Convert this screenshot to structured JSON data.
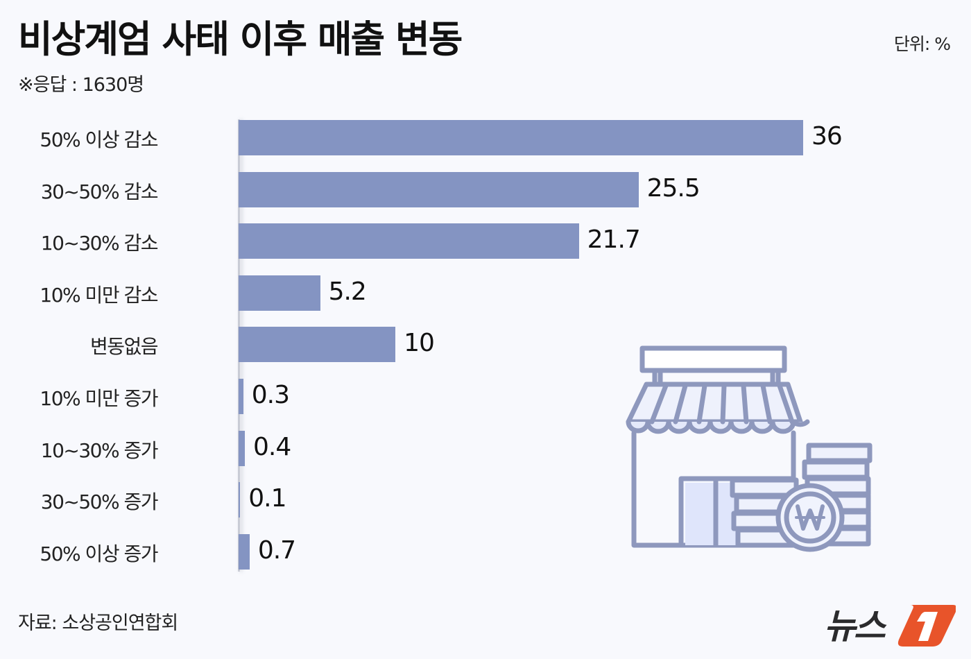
{
  "header": {
    "title": "비상계엄 사태 이후 매출 변동",
    "subtitle": "※응답 : 1630명",
    "unit": "단위: %"
  },
  "footer": {
    "source": "자료: 소상공인연합회",
    "logo_text": "뉴스",
    "logo_mark": "1"
  },
  "colors": {
    "bar": "#8494c2",
    "background": "#f8f9fd",
    "logo_accent": "#e8542a",
    "illustration_stroke": "#8e98bd",
    "illustration_fill": "#e4e9fa"
  },
  "illustration": "store-with-won-coins-icon",
  "chart_data": {
    "type": "bar",
    "orientation": "horizontal",
    "title": "비상계엄 사태 이후 매출 변동",
    "subtitle": "※응답 : 1630명",
    "unit": "%",
    "categories": [
      "50% 이상 감소",
      "30~50% 감소",
      "10~30% 감소",
      "10% 미만 감소",
      "변동없음",
      "10% 미만 증가",
      "10~30% 증가",
      "30~50% 증가",
      "50% 이상 증가"
    ],
    "values": [
      36,
      25.5,
      21.7,
      5.2,
      10,
      0.3,
      0.4,
      0.1,
      0.7
    ],
    "value_labels": [
      "36",
      "25.5",
      "21.7",
      "5.2",
      "10",
      "0.3",
      "0.4",
      "0.1",
      "0.7"
    ],
    "xlabel": "",
    "ylabel": "",
    "xlim": [
      0,
      36
    ],
    "grid": false,
    "legend": "none",
    "source": "자료: 소상공인연합회"
  }
}
